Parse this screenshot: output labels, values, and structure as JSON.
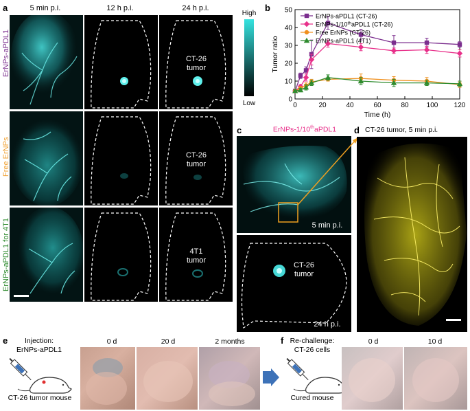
{
  "panel_a": {
    "letter": "a",
    "columns": [
      "5 min p.i.",
      "12 h p.i.",
      "24 h p.i."
    ],
    "rows": [
      {
        "label": "ErNPs-aPDL1",
        "color": "#7b2e8e",
        "tumor_label_line1": "CT-26",
        "tumor_label_line2": "tumor"
      },
      {
        "label": "Free ErNPs",
        "color": "#f0a030",
        "tumor_label_line1": "CT-26",
        "tumor_label_line2": "tumor"
      },
      {
        "label": "ErNPs-aPDL1 for 4T1",
        "color": "#2e8b2e",
        "tumor_label_line1": "4T1",
        "tumor_label_line2": "tumor"
      }
    ],
    "colorbar": {
      "high": "High",
      "low": "Low"
    }
  },
  "panel_b": {
    "letter": "b"
  },
  "chart_data": {
    "type": "line",
    "xlabel": "Time (h)",
    "ylabel": "Tumor ratio",
    "xlim": [
      0,
      120
    ],
    "ylim": [
      0,
      50
    ],
    "xticks": [
      0,
      20,
      40,
      60,
      80,
      100,
      120
    ],
    "yticks": [
      0,
      10,
      20,
      30,
      40,
      50
    ],
    "legend_position": "top-left",
    "x": [
      0.08,
      4,
      8,
      12,
      24,
      48,
      72,
      96,
      120
    ],
    "series": [
      {
        "name": "ErNPs-aPDL1 (CT-26)",
        "color": "#7b2e8e",
        "marker": "square",
        "values": [
          4.5,
          13,
          16,
          25,
          42.5,
          36,
          31.5,
          31.5,
          30.5
        ],
        "errors": [
          0.5,
          1.5,
          2,
          8,
          3.5,
          3,
          4,
          2.5,
          1.5
        ]
      },
      {
        "name_prefix": "ErNPs-1/10",
        "name_sup": "th",
        "name_suffix": "aPDL1 (CT-26)",
        "color": "#e8308a",
        "marker": "diamond",
        "values": [
          4.5,
          7,
          12,
          22,
          31,
          29,
          27,
          27.5,
          25.5
        ],
        "errors": [
          0.5,
          1,
          2,
          3,
          2,
          2,
          1.5,
          2,
          2
        ]
      },
      {
        "name": "Free ErNPs (CT-26)",
        "color": "#f0901e",
        "marker": "circle",
        "values": [
          4.5,
          6,
          7.5,
          9.5,
          11,
          11.5,
          10.5,
          10,
          8
        ],
        "errors": [
          0.5,
          1,
          1.5,
          1.5,
          1,
          2.5,
          2,
          2,
          1.5
        ]
      },
      {
        "name": "ErNPs-aPDL1 (4T1)",
        "color": "#2e8b2e",
        "marker": "triangle",
        "values": [
          4.5,
          5,
          6.5,
          9,
          12,
          10,
          9,
          9,
          8.5
        ],
        "errors": [
          0.5,
          1,
          1.5,
          1.5,
          1.5,
          2,
          2,
          1.5,
          1.5
        ]
      }
    ]
  },
  "panel_c": {
    "letter": "c",
    "title_prefix": "ErNPs-1/10",
    "title_sup": "th",
    "title_suffix": "aPDL1",
    "top_label": "5 min p.i.",
    "bottom_label": "24 h p.i.",
    "tumor_label_line1": "CT-26",
    "tumor_label_line2": "tumor"
  },
  "panel_d": {
    "letter": "d",
    "title": "CT-26 tumor, 5 min p.i."
  },
  "panel_e": {
    "letter": "e",
    "injection_line1": "Injection:",
    "injection_line2": "ErNPs-aPDL1",
    "mouse_label": "CT-26 tumor mouse",
    "time_labels": [
      "0 d",
      "20 d",
      "2 months"
    ]
  },
  "panel_f": {
    "letter": "f",
    "injection_line1": "Re-challenge:",
    "injection_line2": "CT-26 cells",
    "mouse_label": "Cured mouse",
    "time_labels": [
      "0 d",
      "10 d"
    ]
  },
  "colors": {
    "cyan": "#35e3e0",
    "yellow": "#f2e81e",
    "arrow_blue": "#3d72b8",
    "orange_box": "#f0a020"
  }
}
